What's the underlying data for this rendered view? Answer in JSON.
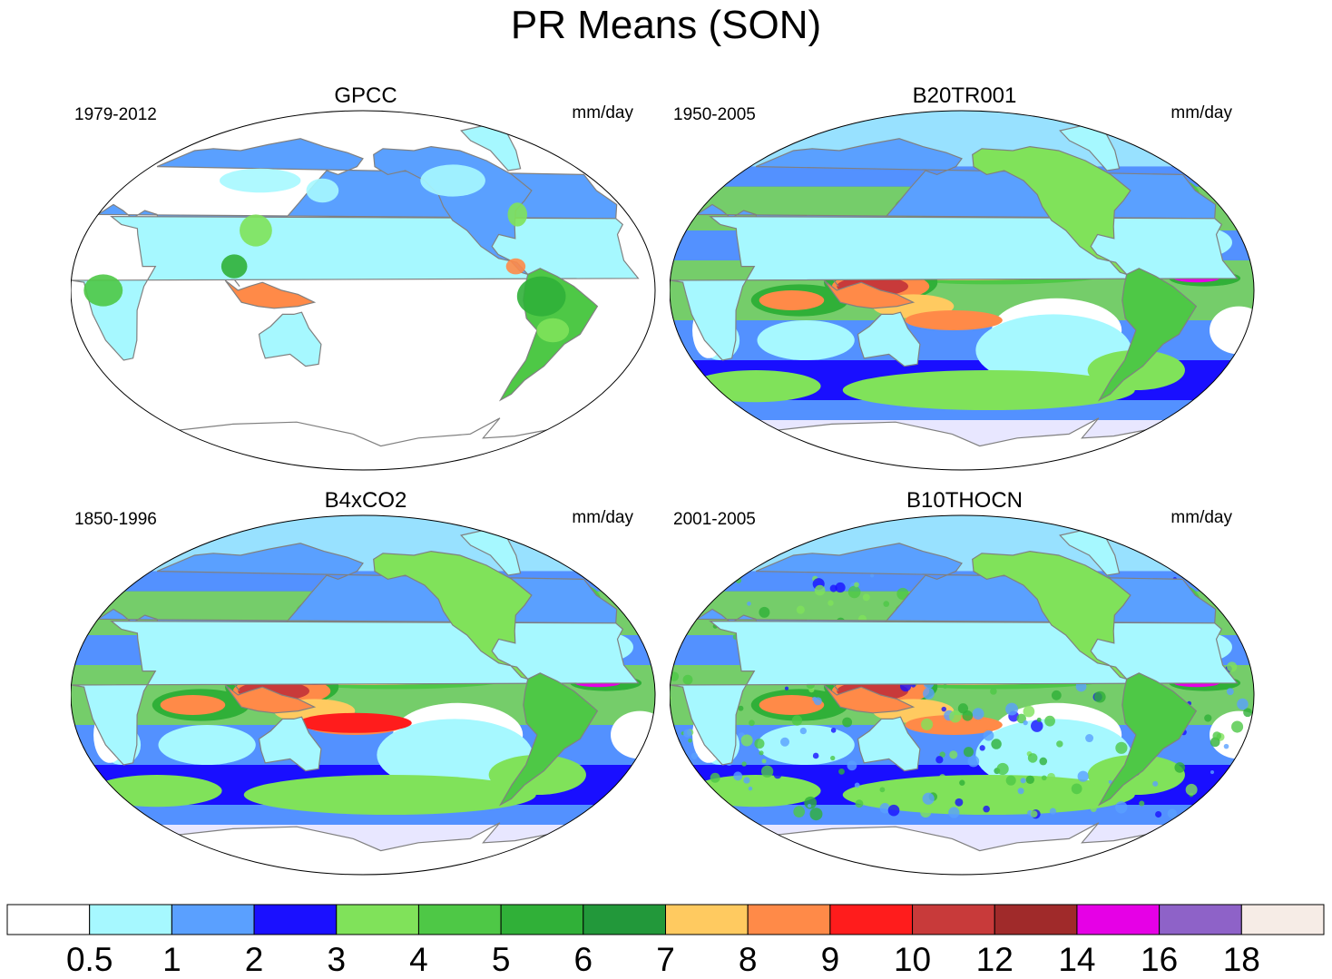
{
  "title": "PR Means (SON)",
  "panels": [
    {
      "id": "gpcc",
      "title": "GPCC",
      "period": "1979-2012",
      "units": "mm/day",
      "coverage": "land"
    },
    {
      "id": "b20tr001",
      "title": "B20TR001",
      "period": "1950-2005",
      "units": "mm/day",
      "coverage": "global",
      "detail": "smooth"
    },
    {
      "id": "b4xco2",
      "title": "B4xCO2",
      "period": "1850-1996",
      "units": "mm/day",
      "coverage": "global",
      "detail": "smooth-wet"
    },
    {
      "id": "b10thocn",
      "title": "B10THOCN",
      "period": "2001-2005",
      "units": "mm/day",
      "coverage": "global",
      "detail": "noisy"
    }
  ],
  "colorbar": {
    "labels": [
      "0.5",
      "1",
      "2",
      "3",
      "4",
      "5",
      "6",
      "7",
      "8",
      "9",
      "10",
      "12",
      "14",
      "16",
      "18"
    ],
    "colors": [
      "#ffffff",
      "#a6f8ff",
      "#5aa0ff",
      "#1a10ff",
      "#80e25a",
      "#4ec846",
      "#30b038",
      "#22983a",
      "#ffca60",
      "#ff8a48",
      "#ff1c1c",
      "#c83a3a",
      "#a02a2a",
      "#e600e6",
      "#8e62c8",
      "#f6ece6"
    ]
  },
  "projection": "robinson",
  "center_longitude": 180,
  "coastline_color": "#808080"
}
